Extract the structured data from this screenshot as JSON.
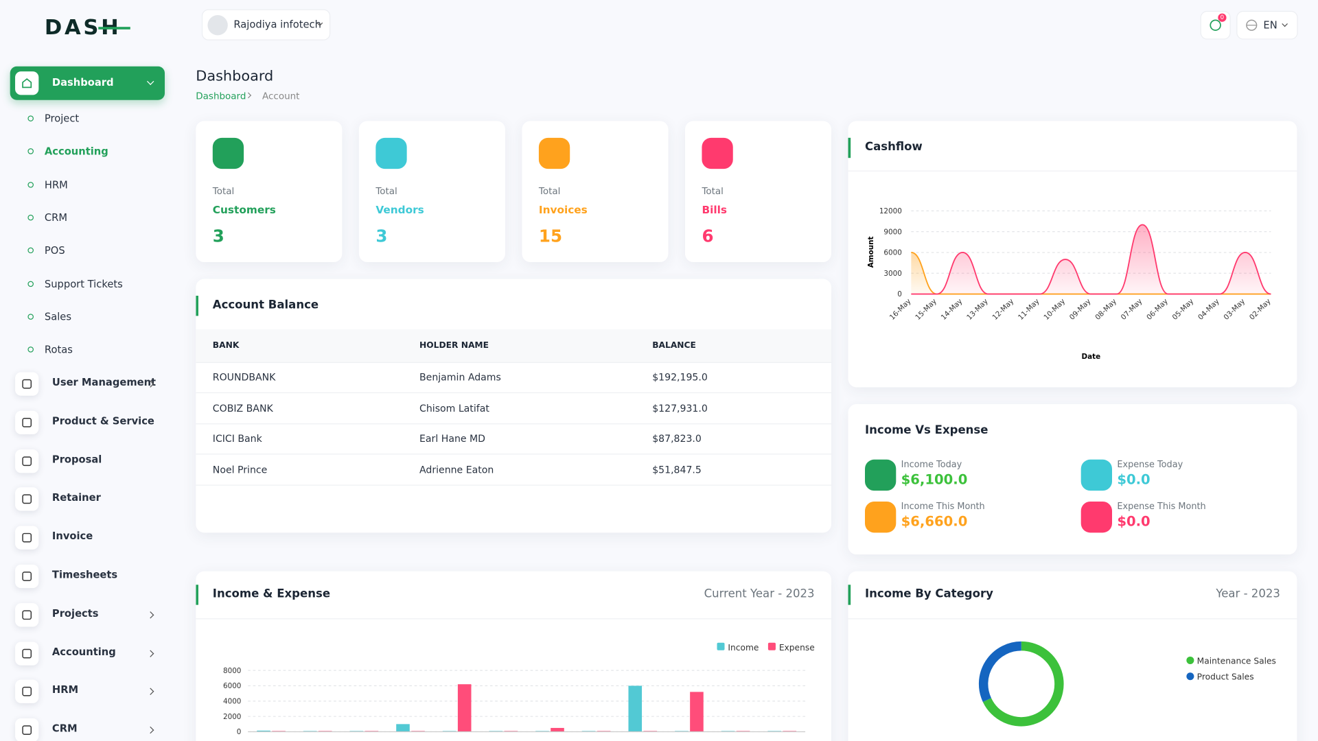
{
  "logo": "DASH",
  "header": {
    "company": "Rajodiya infotech",
    "notifications": "0",
    "language": "EN"
  },
  "sidebar": {
    "active": "Dashboard",
    "submenu": [
      "Project",
      "Accounting",
      "HRM",
      "CRM",
      "POS",
      "Support Tickets",
      "Sales",
      "Rotas"
    ],
    "menu": [
      {
        "label": "User Management",
        "has_submenu": true
      },
      {
        "label": "Product & Service",
        "has_submenu": false
      },
      {
        "label": "Proposal",
        "has_submenu": false
      },
      {
        "label": "Retainer",
        "has_submenu": false
      },
      {
        "label": "Invoice",
        "has_submenu": false
      },
      {
        "label": "Timesheets",
        "has_submenu": false
      },
      {
        "label": "Projects",
        "has_submenu": true
      },
      {
        "label": "Accounting",
        "has_submenu": true
      },
      {
        "label": "HRM",
        "has_submenu": true
      },
      {
        "label": "CRM",
        "has_submenu": true
      }
    ]
  },
  "page": {
    "title": "Dashboard",
    "breadcrumb": [
      "Dashboard",
      "Account"
    ]
  },
  "stats": [
    {
      "label": "Total",
      "name": "Customers",
      "value": 3,
      "color": "#22a05a"
    },
    {
      "label": "Total",
      "name": "Vendors",
      "value": 3,
      "color": "#3ec9d6"
    },
    {
      "label": "Total",
      "name": "Invoices",
      "value": 15,
      "color": "#ffa21d"
    },
    {
      "label": "Total",
      "name": "Bills",
      "value": 6,
      "color": "#ff3a6e"
    }
  ],
  "account_balance": {
    "title": "Account Balance",
    "columns": [
      "BANK",
      "HOLDER NAME",
      "BALANCE"
    ],
    "rows": [
      [
        "ROUNDBANK",
        "Benjamin Adams",
        "$192,195.0"
      ],
      [
        "COBIZ BANK",
        "Chisom Latifat",
        "$127,931.0"
      ],
      [
        "ICICI Bank",
        "Earl Hane MD",
        "$87,823.0"
      ],
      [
        "Noel Prince",
        "Adrienne Eaton",
        "$51,847.5"
      ]
    ]
  },
  "income_vs_expense": {
    "title": "Income Vs Expense",
    "items": [
      {
        "label": "Income Today",
        "value": "$6,100.0",
        "color": "#3cc13b",
        "icon_color": "#22a05a"
      },
      {
        "label": "Expense Today",
        "value": "$0.0",
        "color": "#3ec9d6",
        "icon_color": "#3ec9d6"
      },
      {
        "label": "Income This Month",
        "value": "$6,660.0",
        "color": "#ffa21d",
        "icon_color": "#ffa21d"
      },
      {
        "label": "Expense This Month",
        "value": "$0.0",
        "color": "#ff3a6e",
        "icon_color": "#ff3a6e"
      }
    ]
  },
  "chart_data": [
    {
      "type": "area",
      "title": "Cashflow",
      "x_label": "Date",
      "y_label": "Amount",
      "categories": [
        "16-May",
        "15-May",
        "14-May",
        "13-May",
        "12-May",
        "11-May",
        "10-May",
        "09-May",
        "08-May",
        "07-May",
        "06-May",
        "05-May",
        "04-May",
        "03-May",
        "02-May"
      ],
      "series": [
        {
          "color": "#ffa21d",
          "values": [
            6000,
            0,
            0,
            0,
            0,
            0,
            0,
            0,
            0,
            0,
            0,
            0,
            0,
            0,
            0
          ]
        },
        {
          "color": "#ff3a6e",
          "values": [
            0,
            0,
            6000,
            0,
            0,
            0,
            5000,
            0,
            0,
            10000,
            0,
            0,
            0,
            6000,
            0
          ]
        }
      ],
      "ylim": [
        0,
        12000
      ],
      "yticks": [
        0,
        3000,
        6000,
        9000,
        12000
      ],
      "grid": true
    },
    {
      "type": "bar",
      "title": "Income & Expense",
      "subtitle": "Current Year - 2023",
      "categories": [
        null,
        null,
        null,
        null,
        null,
        null,
        null,
        null,
        null,
        null,
        null,
        null
      ],
      "series": [
        {
          "name": "Income",
          "color": "#52c9d4",
          "values": [
            150,
            100,
            100,
            1000,
            100,
            100,
            100,
            100,
            6000,
            100,
            100,
            100
          ]
        },
        {
          "name": "Expense",
          "color": "#ff4d7a",
          "values": [
            100,
            100,
            100,
            100,
            6200,
            100,
            500,
            100,
            100,
            5200,
            100,
            100
          ]
        }
      ],
      "ylim": [
        0,
        8000
      ],
      "yticks": [
        0,
        2000,
        4000,
        6000,
        8000
      ],
      "grid": true,
      "legend": "top-right"
    },
    {
      "type": "donut",
      "title": "Income By Category",
      "subtitle": "Year - 2023",
      "categories": [
        "Maintenance Sales",
        "Product Sales"
      ],
      "values": [
        68,
        32
      ],
      "colors": [
        "#3cc13b",
        "#1565c0"
      ],
      "legend": "right"
    }
  ]
}
